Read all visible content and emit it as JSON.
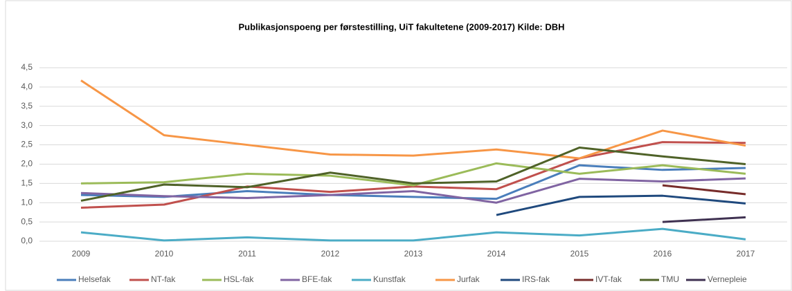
{
  "chart_data": {
    "type": "line",
    "title": "Publikasjonspoeng per førstestilling, UiT fakultetene (2009-2017) Kilde: DBH",
    "categories": [
      "2009",
      "2010",
      "2011",
      "2012",
      "2013",
      "2014",
      "2015",
      "2016",
      "2017"
    ],
    "ylim": [
      0,
      4.5
    ],
    "yticks": [
      {
        "value": 0,
        "label": "0,0"
      },
      {
        "value": 0.5,
        "label": "0,5"
      },
      {
        "value": 1,
        "label": "1,0"
      },
      {
        "value": 1.5,
        "label": "1,5"
      },
      {
        "value": 2,
        "label": "2,0"
      },
      {
        "value": 2.5,
        "label": "2,5"
      },
      {
        "value": 3,
        "label": "3,0"
      },
      {
        "value": 3.5,
        "label": "3,5"
      },
      {
        "value": 4,
        "label": "4,0"
      },
      {
        "value": 4.5,
        "label": "4,5"
      }
    ],
    "grid": true,
    "legend": "bottom",
    "series": [
      {
        "name": "Helsefak",
        "color": "#4a7ebb",
        "values": [
          1.2,
          1.15,
          1.3,
          1.2,
          1.15,
          1.1,
          1.97,
          1.85,
          1.9
        ]
      },
      {
        "name": "NT-fak",
        "color": "#c0504d",
        "values": [
          0.87,
          0.95,
          1.42,
          1.28,
          1.42,
          1.35,
          2.15,
          2.57,
          2.55
        ]
      },
      {
        "name": "HSL-fak",
        "color": "#9bbb59",
        "values": [
          1.5,
          1.53,
          1.75,
          1.7,
          1.45,
          2.02,
          1.75,
          1.97,
          1.75
        ]
      },
      {
        "name": "BFE-fak",
        "color": "#8064a2",
        "values": [
          1.25,
          1.17,
          1.12,
          1.2,
          1.3,
          1.0,
          1.62,
          1.55,
          1.63
        ]
      },
      {
        "name": "Kunstfak",
        "color": "#4bacc6",
        "values": [
          0.23,
          0.02,
          0.1,
          0.02,
          0.02,
          0.23,
          0.15,
          0.32,
          0.05
        ]
      },
      {
        "name": "Jurfak",
        "color": "#f79646",
        "values": [
          4.17,
          2.75,
          2.5,
          2.25,
          2.22,
          2.38,
          2.15,
          2.87,
          2.48
        ]
      },
      {
        "name": "IRS-fak",
        "color": "#1f497d",
        "values": [
          null,
          null,
          null,
          null,
          null,
          0.68,
          1.15,
          1.18,
          0.98
        ]
      },
      {
        "name": "IVT-fak",
        "color": "#772c2a",
        "values": [
          null,
          null,
          null,
          null,
          null,
          null,
          null,
          1.45,
          1.22
        ]
      },
      {
        "name": "TMU",
        "color": "#4f6228",
        "values": [
          1.05,
          1.47,
          1.4,
          1.78,
          1.5,
          1.55,
          2.43,
          2.2,
          2.0
        ]
      },
      {
        "name": "Vernepleie",
        "color": "#3f3151",
        "values": [
          null,
          null,
          null,
          null,
          null,
          null,
          null,
          0.5,
          0.62
        ]
      }
    ]
  }
}
